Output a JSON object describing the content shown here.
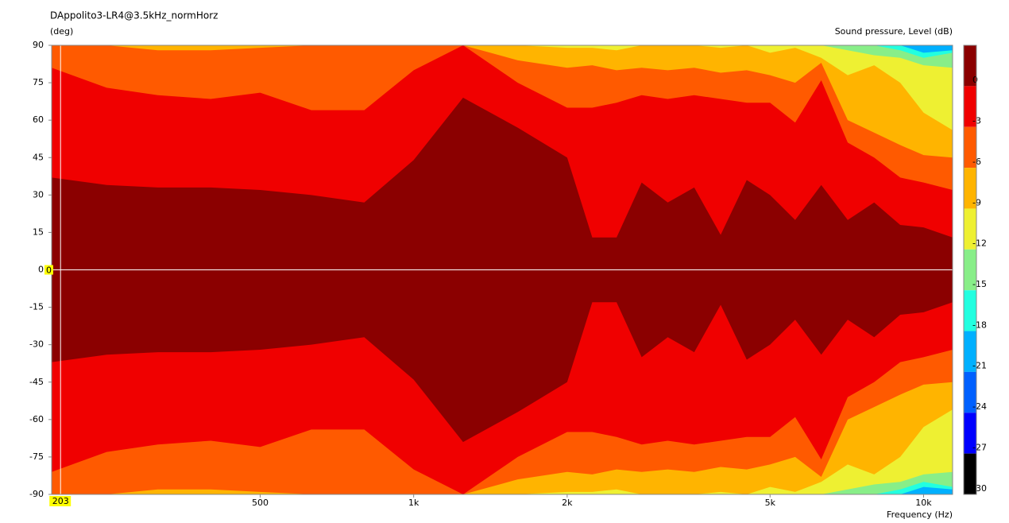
{
  "chart_data": {
    "type": "contour",
    "title": "DAppolito3-LR4@3.5kHz_normHorz",
    "y_label": "(deg)",
    "colorbar_label": "Sound pressure, Level  (dB)",
    "x_label": "Frequency  (Hz)",
    "xlog": true,
    "xlim": [
      195,
      11400
    ],
    "xticks": [
      500,
      {
        "value": 1000,
        "label": "1k"
      },
      {
        "value": 2000,
        "label": "2k"
      },
      {
        "value": 5000,
        "label": "5k"
      },
      {
        "value": 10000,
        "label": "10k"
      }
    ],
    "ylim": [
      -90,
      90
    ],
    "yticks": [
      90,
      75,
      60,
      45,
      30,
      15,
      0,
      -15,
      -30,
      -45,
      -60,
      -75,
      -90
    ],
    "cursor": {
      "x": 203,
      "y": 0
    },
    "colorbar": {
      "levels": [
        0,
        -3,
        -6,
        -9,
        -12,
        -15,
        -18,
        -21,
        -24,
        -27,
        -30
      ],
      "colors": [
        "#8b0000",
        "#f00000",
        "#ff5a00",
        "#ffb400",
        "#eef032",
        "#88ee88",
        "#22ffe0",
        "#00b0ff",
        "#0060ff",
        "#0000ff",
        "#000000"
      ]
    },
    "x": [
      195,
      250,
      315,
      400,
      500,
      630,
      800,
      1000,
      1250,
      1600,
      2000,
      2240,
      2500,
      2800,
      3150,
      3550,
      4000,
      4500,
      5000,
      5600,
      6300,
      7100,
      8000,
      9000,
      10000,
      11400
    ],
    "series": [
      {
        "values": [
          37,
          34,
          33,
          33,
          32,
          30,
          27,
          44,
          69,
          57,
          45,
          13,
          13,
          35,
          27,
          33,
          14,
          36,
          30,
          20,
          34,
          20,
          27,
          18,
          17,
          13
        ]
      },
      {
        "values": [
          81,
          73,
          70,
          68.5,
          71,
          64,
          64,
          80,
          90,
          75,
          65,
          65,
          67,
          70,
          68.5,
          70,
          68.5,
          67,
          67,
          59,
          76,
          51,
          45,
          37,
          35,
          32
        ]
      },
      {
        "values": [
          90,
          90,
          88,
          88,
          89,
          90,
          90,
          90,
          90,
          84,
          81,
          82,
          80,
          81,
          80,
          81,
          79,
          80,
          78,
          75,
          83,
          60,
          55,
          50,
          46,
          45
        ]
      },
      {
        "values": [
          90,
          90,
          90,
          90,
          90,
          90,
          90,
          90,
          90,
          90,
          89,
          89,
          88,
          90,
          90,
          90,
          89,
          90,
          87,
          89,
          85,
          78,
          82,
          75,
          63,
          56
        ]
      },
      {
        "values": [
          90,
          90,
          90,
          90,
          90,
          90,
          90,
          90,
          90,
          90,
          90,
          90,
          90,
          90,
          90,
          90,
          90,
          90,
          90,
          90,
          90,
          88,
          86,
          85,
          82,
          81
        ]
      },
      {
        "values": [
          90,
          90,
          90,
          90,
          90,
          90,
          90,
          90,
          90,
          90,
          90,
          90,
          90,
          90,
          90,
          90,
          90,
          90,
          90,
          90,
          90,
          90,
          90,
          88,
          85,
          87
        ]
      },
      {
        "values": [
          90,
          90,
          90,
          90,
          90,
          90,
          90,
          90,
          90,
          90,
          90,
          90,
          90,
          90,
          90,
          90,
          90,
          90,
          90,
          90,
          90,
          90,
          90,
          90,
          87,
          88
        ]
      }
    ]
  }
}
